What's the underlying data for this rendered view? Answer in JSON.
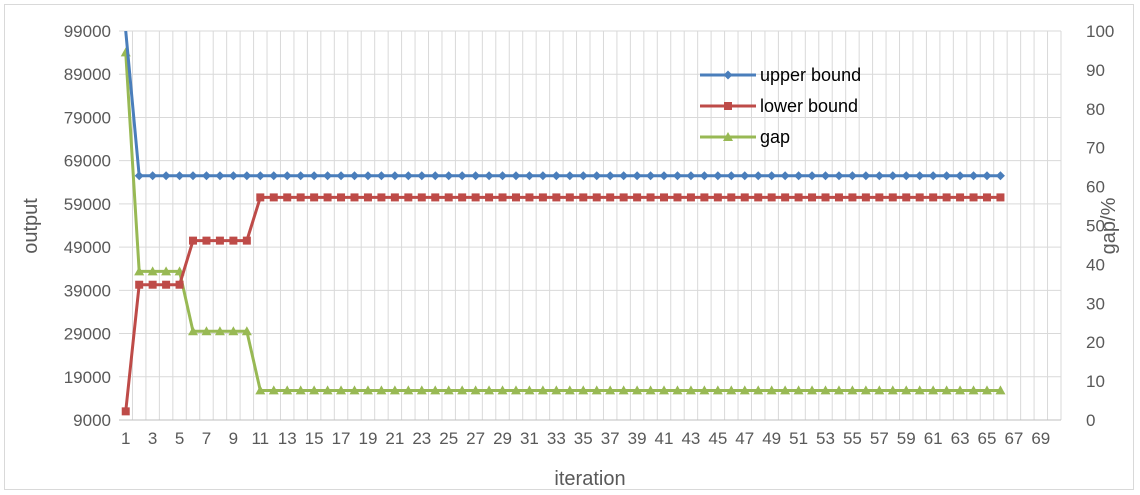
{
  "chart_data": {
    "type": "line",
    "xlabel": "iteration",
    "ylabel": "output",
    "y2label": "gap/%",
    "x_ticks": [
      "1",
      "3",
      "5",
      "7",
      "9",
      "11",
      "13",
      "15",
      "17",
      "19",
      "21",
      "23",
      "25",
      "27",
      "29",
      "31",
      "33",
      "35",
      "37",
      "39",
      "41",
      "43",
      "45",
      "47",
      "49",
      "51",
      "53",
      "55",
      "57",
      "59",
      "61",
      "63",
      "65",
      "67",
      "69"
    ],
    "x_range": [
      1,
      70
    ],
    "y_ticks": [
      "99000",
      "89000",
      "79000",
      "69000",
      "59000",
      "49000",
      "39000",
      "29000",
      "19000",
      "9000"
    ],
    "ylim": [
      9000,
      99000
    ],
    "y2_ticks": [
      "100",
      "90",
      "80",
      "70",
      "60",
      "50",
      "40",
      "30",
      "20",
      "10",
      "0"
    ],
    "y2lim": [
      0,
      100
    ],
    "grid": true,
    "legend_position": "top-right inside plot",
    "series": [
      {
        "name": "upper bound",
        "axis": "left",
        "color": "#4a7ebb",
        "marker": "diamond",
        "segments": [
          {
            "from": 1,
            "to": 1,
            "value": 99000
          },
          {
            "from": 2,
            "to": 66,
            "value": 65500
          }
        ]
      },
      {
        "name": "lower bound",
        "axis": "left",
        "color": "#be4b48",
        "marker": "square",
        "segments": [
          {
            "from": 1,
            "to": 1,
            "value": 11000
          },
          {
            "from": 2,
            "to": 5,
            "value": 40300
          },
          {
            "from": 6,
            "to": 10,
            "value": 50500
          },
          {
            "from": 11,
            "to": 66,
            "value": 60500
          }
        ]
      },
      {
        "name": "gap",
        "axis": "right",
        "color": "#98b954",
        "marker": "triangle",
        "segments": [
          {
            "from": 1,
            "to": 1,
            "value": 94.5
          },
          {
            "from": 2,
            "to": 5,
            "value": 38.2
          },
          {
            "from": 6,
            "to": 10,
            "value": 22.8
          },
          {
            "from": 11,
            "to": 66,
            "value": 7.6
          }
        ]
      }
    ]
  }
}
